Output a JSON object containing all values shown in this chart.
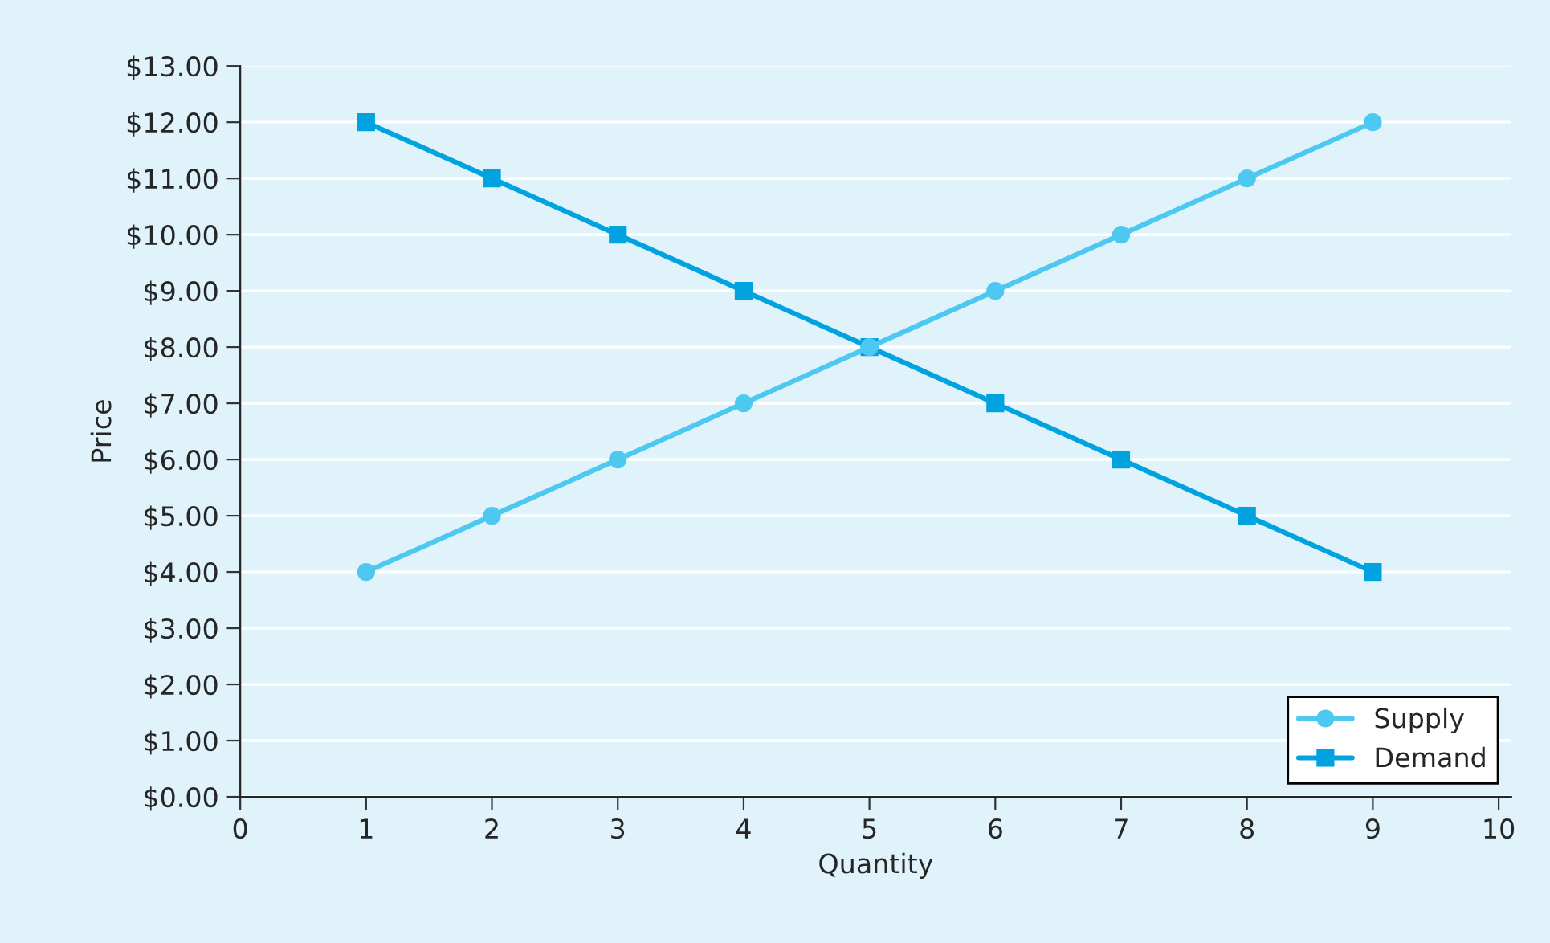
{
  "chart_data": {
    "type": "line",
    "xlabel": "Quantity",
    "ylabel": "Price",
    "x": [
      1,
      2,
      3,
      4,
      5,
      6,
      7,
      8,
      9
    ],
    "series": [
      {
        "name": "Supply",
        "color": "#4dc8f0",
        "marker": "circle",
        "values": [
          4,
          5,
          6,
          7,
          8,
          9,
          10,
          11,
          12
        ]
      },
      {
        "name": "Demand",
        "color": "#00a3e0",
        "marker": "square",
        "values": [
          12,
          11,
          10,
          9,
          8,
          7,
          6,
          5,
          4
        ]
      }
    ],
    "xlim": [
      0,
      10.1
    ],
    "xticks": [
      0,
      1,
      2,
      3,
      4,
      5,
      6,
      7,
      8,
      9,
      10
    ],
    "ylim": [
      0,
      13
    ],
    "yticks": [
      {
        "value": 0,
        "label": "$0.00"
      },
      {
        "value": 1,
        "label": "$1.00"
      },
      {
        "value": 2,
        "label": "$2.00"
      },
      {
        "value": 3,
        "label": "$3.00"
      },
      {
        "value": 4,
        "label": "$4.00"
      },
      {
        "value": 5,
        "label": "$5.00"
      },
      {
        "value": 6,
        "label": "$6.00"
      },
      {
        "value": 7,
        "label": "$7.00"
      },
      {
        "value": 8,
        "label": "$8.00"
      },
      {
        "value": 9,
        "label": "$9.00"
      },
      {
        "value": 10,
        "label": "$10.00"
      },
      {
        "value": 11,
        "label": "$11.00"
      },
      {
        "value": 12,
        "label": "$12.00"
      },
      {
        "value": 13,
        "label": "$13.00"
      }
    ],
    "grid": "y",
    "legend": "bottom right",
    "line_style": "solid"
  }
}
